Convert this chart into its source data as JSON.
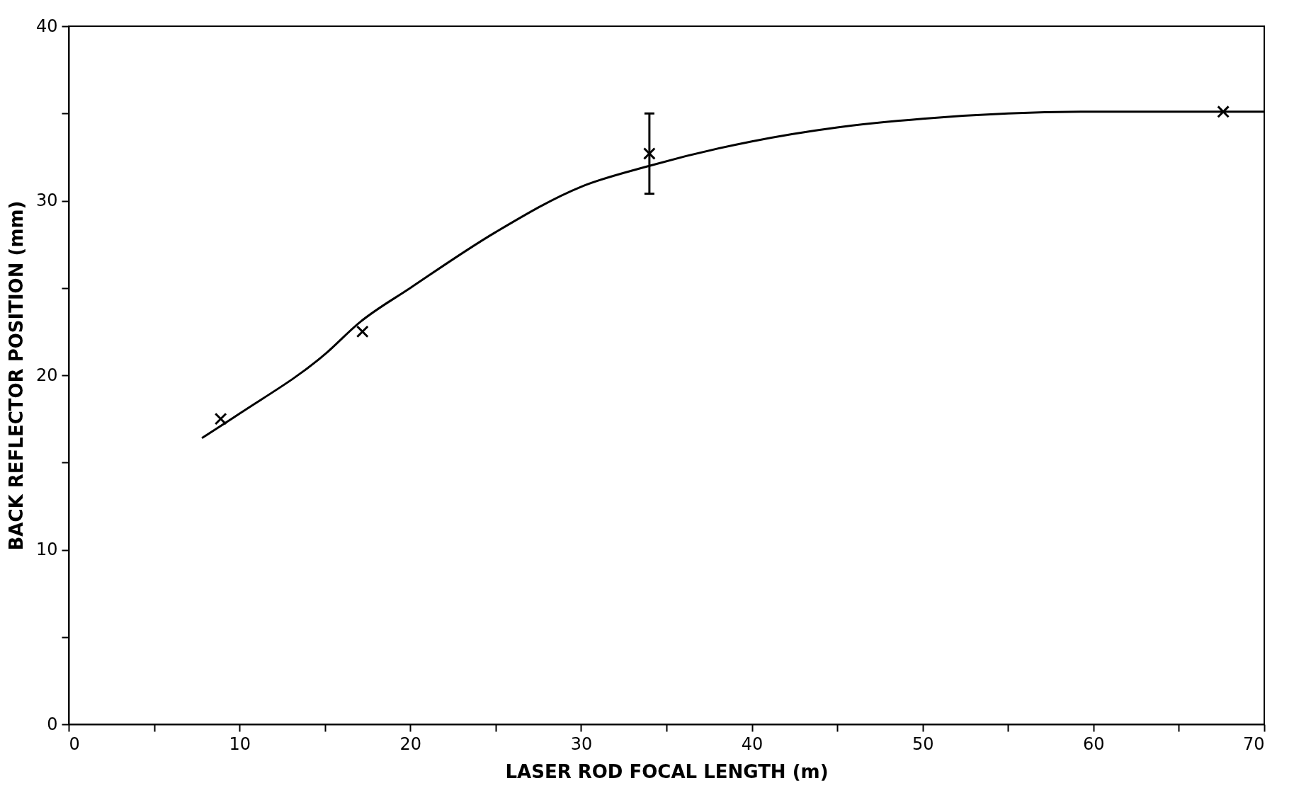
{
  "chart_data": {
    "type": "scatter",
    "xlabel": "LASER ROD FOCAL LENGTH (m)",
    "ylabel": "BACK REFLECTOR POSITION (mm)",
    "xlim": [
      0,
      70
    ],
    "ylim": [
      0,
      40
    ],
    "xticks": [
      0,
      {
        "value": 5,
        "label": null
      },
      10,
      {
        "value": 15,
        "label": null
      },
      20,
      {
        "value": 25,
        "label": null
      },
      30,
      {
        "value": 35,
        "label": null
      },
      40,
      {
        "value": 45,
        "label": null
      },
      50,
      {
        "value": 55,
        "label": null
      },
      60,
      {
        "value": 65,
        "label": null
      },
      70
    ],
    "yticks": [
      0,
      {
        "value": 5,
        "label": null
      },
      10,
      {
        "value": 15,
        "label": null
      },
      20,
      {
        "value": 25,
        "label": null
      },
      30,
      {
        "value": 35,
        "label": null
      },
      40
    ],
    "grid": false,
    "series": [
      {
        "type": "scatter",
        "color": "#000000",
        "marker": "cross",
        "x": [
          8.9,
          17.2,
          34.0,
          67.6
        ],
        "values": [
          17.5,
          22.5,
          32.7,
          35.1
        ],
        "errors": [
          null,
          null,
          [
            30.4,
            35.0
          ],
          null
        ]
      },
      {
        "type": "line",
        "color": "#000000",
        "line_style": "solid",
        "marker": "none",
        "x": [
          7.8,
          10,
          15,
          17,
          20,
          25,
          30,
          34,
          40,
          45,
          50,
          55,
          60,
          65,
          70
        ],
        "values": [
          16.4,
          17.8,
          21.2,
          23.0,
          25.0,
          28.2,
          30.8,
          32.0,
          33.4,
          34.2,
          34.7,
          35.0,
          35.1,
          35.1,
          35.1
        ]
      }
    ]
  }
}
